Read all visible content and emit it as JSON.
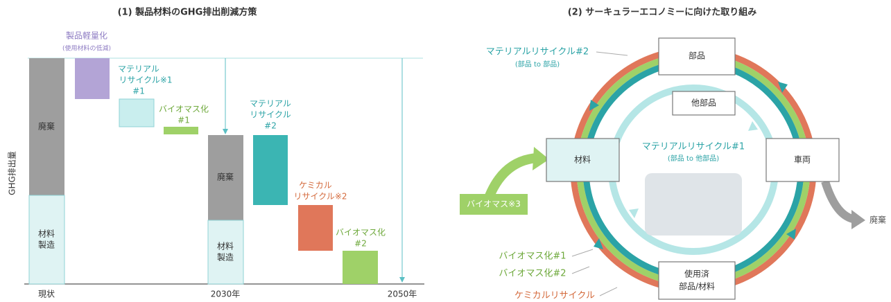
{
  "left": {
    "title": "(1) 製品材料のGHG排出削減方策",
    "y_label": "GHG排出量",
    "x_labels": [
      "現状",
      "2030年",
      "2050年"
    ],
    "bars": {
      "current_waste": "廃棄",
      "current_production": [
        "材料",
        "製造"
      ],
      "y2030_waste": "廃棄",
      "y2030_production": [
        "材料",
        "製造"
      ]
    },
    "measures": [
      {
        "lines": [
          "製品軽量化",
          "(使用材料の低減)"
        ]
      },
      {
        "lines": [
          "マテリアル",
          "リサイクル※1",
          "#1"
        ]
      },
      {
        "lines": [
          "バイオマス化",
          "#1"
        ]
      },
      {
        "lines": [
          "マテリアル",
          "リサイクル",
          "#2"
        ]
      },
      {
        "lines": [
          "ケミカル",
          "リサイクル※2"
        ]
      },
      {
        "lines": [
          "バイオマス化",
          "#2"
        ]
      }
    ]
  },
  "right": {
    "title": "(2) サーキュラーエコノミーに向けた取り組み",
    "nodes": {
      "parts": "部品",
      "material": "材料",
      "vehicle": "車両",
      "used": [
        "使用済",
        "部品/材料"
      ],
      "other_parts": "他部品"
    },
    "loop1": [
      "マテリアルリサイクル#1",
      "(部品 to 他部品)"
    ],
    "loop2": [
      "マテリアルリサイクル#2",
      "(部品 to 部品)"
    ],
    "biomass_input": "バイオマス※3",
    "waste": "廃棄",
    "legend": [
      "バイオマス化#1",
      "バイオマス化#2",
      "ケミカルリサイクル"
    ]
  }
}
